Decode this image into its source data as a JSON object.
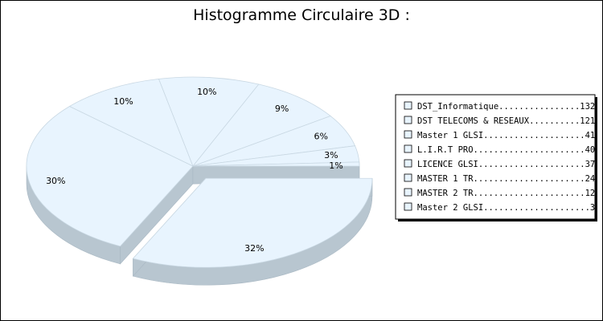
{
  "chart_data": {
    "type": "pie",
    "title": "Histogramme Circulaire 3D :",
    "legend_position": "right",
    "slice_color": "#e8f4fe",
    "side_color": "#b8c6d0",
    "categories": [
      "DST_Informatique",
      "DST TELECOMS & RESEAUX",
      "Master 1 GLSI",
      "L.I.R.T PRO",
      "LICENCE GLSI",
      "MASTER 1 TR",
      "MASTER 2 TR",
      "Master 2 GLSI"
    ],
    "values": [
      132,
      121,
      41,
      40,
      37,
      24,
      12,
      3
    ],
    "percent_labels": [
      "32%",
      "30%",
      "10%",
      "10%",
      "9%",
      "6%",
      "3%",
      "1%"
    ],
    "legend_entries": [
      "DST_Informatique................132",
      "DST TELECOMS & RESEAUX..........121",
      "Master 1 GLSI....................41",
      "L.I.R.T PRO......................40",
      "LICENCE GLSI.....................37",
      "MASTER 1 TR......................24",
      "MASTER 2 TR......................12",
      "Master 2 GLSI.....................3"
    ]
  }
}
